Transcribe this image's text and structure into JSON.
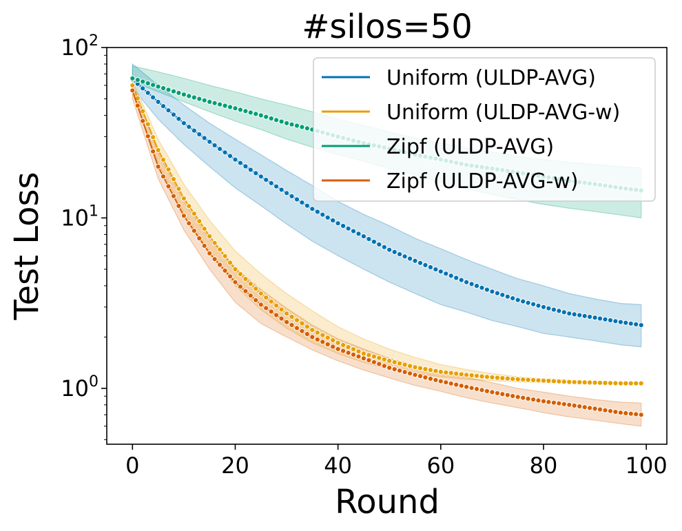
{
  "chart_data": {
    "type": "line",
    "title": "#silos=50",
    "xlabel": "Round",
    "ylabel": "Test Loss",
    "xlim": [
      -5,
      104
    ],
    "ylim": [
      0.47,
      100
    ],
    "y_scale": "log",
    "grid": false,
    "legend_placement": "top-right",
    "x_ticks": [
      {
        "value": 0,
        "label": "0"
      },
      {
        "value": 20,
        "label": "20"
      },
      {
        "value": 40,
        "label": "40"
      },
      {
        "value": 60,
        "label": "60"
      },
      {
        "value": 80,
        "label": "80"
      },
      {
        "value": 100,
        "label": "100"
      }
    ],
    "y_ticks": [
      {
        "value": 1,
        "base": "10",
        "exp": "0"
      },
      {
        "value": 10,
        "base": "10",
        "exp": "1"
      },
      {
        "value": 100,
        "base": "10",
        "exp": "2"
      }
    ],
    "x": [
      0,
      5,
      10,
      15,
      20,
      25,
      30,
      35,
      40,
      45,
      50,
      55,
      60,
      65,
      70,
      75,
      80,
      85,
      90,
      95,
      99
    ],
    "series": [
      {
        "name": "Uniform (ULDP-AVG)",
        "color": "#0072b2",
        "values": [
          65,
          48,
          36,
          28,
          22,
          17.5,
          14,
          11.3,
          9.3,
          7.8,
          6.5,
          5.6,
          4.85,
          4.2,
          3.7,
          3.3,
          3.0,
          2.75,
          2.6,
          2.45,
          2.35
        ],
        "band_low": [
          58,
          38,
          27,
          20,
          15,
          11.8,
          9.2,
          7.3,
          6.0,
          5.0,
          4.2,
          3.6,
          3.1,
          2.8,
          2.5,
          2.3,
          2.1,
          2.0,
          1.9,
          1.8,
          1.75
        ],
        "band_high": [
          80,
          60,
          46,
          36,
          29,
          23.5,
          19,
          15.5,
          12.5,
          10.5,
          9.0,
          7.6,
          6.6,
          5.7,
          5.0,
          4.4,
          4.0,
          3.6,
          3.35,
          3.15,
          3.1
        ]
      },
      {
        "name": "Uniform (ULDP-AVG-w)",
        "color": "#e69f00",
        "values": [
          60,
          25,
          13,
          7.8,
          5.0,
          3.6,
          2.75,
          2.2,
          1.85,
          1.6,
          1.45,
          1.33,
          1.25,
          1.2,
          1.16,
          1.13,
          1.11,
          1.09,
          1.08,
          1.07,
          1.07
        ],
        "band_low": [
          54,
          21,
          10.8,
          6.3,
          4.0,
          2.9,
          2.25,
          1.85,
          1.6,
          1.42,
          1.3,
          1.22,
          1.17,
          1.13,
          1.11,
          1.09,
          1.08,
          1.07,
          1.06,
          1.05,
          1.05
        ],
        "band_high": [
          64,
          29,
          15.8,
          9.7,
          6.4,
          4.7,
          3.6,
          2.85,
          2.3,
          1.95,
          1.7,
          1.52,
          1.38,
          1.29,
          1.22,
          1.17,
          1.14,
          1.12,
          1.1,
          1.09,
          1.09
        ]
      },
      {
        "name": "Zipf (ULDP-AVG)",
        "color": "#009e73",
        "values": [
          66,
          59,
          53,
          48,
          44,
          40,
          36,
          33,
          30,
          27.5,
          25.5,
          23.5,
          22,
          20.5,
          19.5,
          18.5,
          17.5,
          16.5,
          15.8,
          15.0,
          14.5
        ],
        "band_low": [
          63,
          55,
          48,
          42,
          37,
          33,
          29,
          26,
          23.5,
          21.5,
          19.5,
          17.8,
          16.2,
          14.8,
          13.7,
          12.8,
          12.0,
          11.4,
          10.9,
          10.4,
          10.0
        ],
        "band_high": [
          78,
          72,
          66,
          60,
          55,
          50,
          46,
          42,
          38,
          35,
          32,
          29.5,
          27.5,
          25.8,
          24.3,
          23.0,
          22.0,
          21.2,
          20.6,
          20.0,
          19.6
        ]
      },
      {
        "name": "Zipf (ULDP-AVG-w)",
        "color": "#d55e00",
        "values": [
          56,
          20,
          10.3,
          6.2,
          4.2,
          3.1,
          2.45,
          2.0,
          1.7,
          1.5,
          1.32,
          1.2,
          1.1,
          1.02,
          0.95,
          0.89,
          0.84,
          0.8,
          0.76,
          0.72,
          0.7
        ],
        "band_low": [
          50,
          17,
          8.5,
          5.0,
          3.2,
          2.4,
          2.0,
          1.68,
          1.45,
          1.28,
          1.15,
          1.04,
          0.96,
          0.88,
          0.82,
          0.77,
          0.72,
          0.68,
          0.65,
          0.62,
          0.6
        ],
        "band_high": [
          62,
          24,
          12.5,
          7.5,
          5.1,
          3.8,
          2.95,
          2.35,
          1.95,
          1.7,
          1.5,
          1.36,
          1.25,
          1.16,
          1.08,
          1.0,
          0.95,
          0.9,
          0.86,
          0.83,
          0.82
        ]
      }
    ]
  }
}
